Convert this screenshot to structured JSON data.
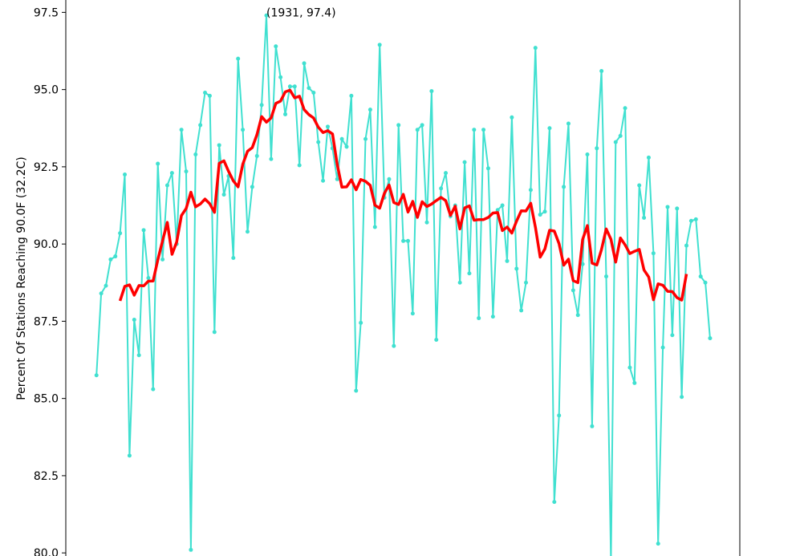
{
  "chart_data": {
    "type": "line",
    "title": "",
    "xlabel": "",
    "ylabel": "Percent Of Stations Reaching 90.0F (32.2C)",
    "ylim": [
      79.9,
      97.9
    ],
    "xlim": [
      1888.5,
      2031.3
    ],
    "yticks": [
      "80.0",
      "82.5",
      "85.0",
      "87.5",
      "90.0",
      "92.5",
      "95.0",
      "97.5"
    ],
    "grid": false,
    "legend": "none",
    "annotation": {
      "text": "(1931, 97.4)",
      "x": 1931,
      "y": 97.4
    },
    "colors": {
      "annual": "#40e0d0",
      "rolling": "#ff0000"
    },
    "x": [
      1895,
      1896,
      1897,
      1898,
      1899,
      1900,
      1901,
      1902,
      1903,
      1904,
      1905,
      1906,
      1907,
      1908,
      1909,
      1910,
      1911,
      1912,
      1913,
      1914,
      1915,
      1916,
      1917,
      1918,
      1919,
      1920,
      1921,
      1922,
      1923,
      1924,
      1925,
      1926,
      1927,
      1928,
      1929,
      1930,
      1931,
      1932,
      1933,
      1934,
      1935,
      1936,
      1937,
      1938,
      1939,
      1940,
      1941,
      1942,
      1943,
      1944,
      1945,
      1946,
      1947,
      1948,
      1949,
      1950,
      1951,
      1952,
      1953,
      1954,
      1955,
      1956,
      1957,
      1958,
      1959,
      1960,
      1961,
      1962,
      1963,
      1964,
      1965,
      1966,
      1967,
      1968,
      1969,
      1970,
      1971,
      1972,
      1973,
      1974,
      1975,
      1976,
      1977,
      1978,
      1979,
      1980,
      1981,
      1982,
      1983,
      1984,
      1985,
      1986,
      1987,
      1988,
      1989,
      1990,
      1991,
      1992,
      1993,
      1994,
      1995,
      1996,
      1997,
      1998,
      1999,
      2000,
      2001,
      2002,
      2003,
      2004,
      2005,
      2006,
      2007,
      2008,
      2009,
      2010,
      2011,
      2012,
      2013,
      2014,
      2015,
      2016,
      2017,
      2018,
      2019,
      2020,
      2021,
      2022,
      2023,
      2024,
      2025
    ],
    "series": [
      {
        "values": [
          85.75,
          88.4,
          88.65,
          89.5,
          89.6,
          90.35,
          92.25,
          83.15,
          87.55,
          86.4,
          90.45,
          88.9,
          85.3,
          92.6,
          89.5,
          91.9,
          92.3,
          90.0,
          93.7,
          92.35,
          80.1,
          92.9,
          93.85,
          94.9,
          94.8,
          87.15,
          93.2,
          91.6,
          92.2,
          89.55,
          96.0,
          93.7,
          90.4,
          91.85,
          92.85,
          94.5,
          97.4,
          92.75,
          96.4,
          95.4,
          94.2,
          95.1,
          95.1,
          92.55,
          95.85,
          95.05,
          94.9,
          93.3,
          92.05,
          93.8,
          93.1,
          92.1,
          93.4,
          93.15,
          94.8,
          85.25,
          87.45,
          93.4,
          94.35,
          90.55,
          96.45,
          91.5,
          92.1,
          86.7,
          93.85,
          90.1,
          90.1,
          87.75,
          93.7,
          93.85,
          90.7,
          94.95,
          86.9,
          91.8,
          92.3,
          90.9,
          91.25,
          88.75,
          92.65,
          89.05,
          93.7,
          87.6,
          93.7,
          92.45,
          87.65,
          91.1,
          91.25,
          89.45,
          94.1,
          89.2,
          87.85,
          88.75,
          91.75,
          96.35,
          90.95,
          91.05,
          93.75,
          81.65,
          84.45,
          91.85,
          93.9,
          88.5,
          87.7,
          89.35,
          92.9,
          84.1,
          93.1,
          95.6,
          88.95,
          79.7,
          93.3,
          93.5,
          94.4,
          86.0,
          85.5,
          91.9,
          90.85,
          92.8,
          89.7,
          80.3,
          86.65,
          91.2,
          87.05,
          91.15,
          85.05,
          89.95,
          90.75,
          90.8,
          88.95,
          88.75,
          86.95
        ]
      }
    ]
  }
}
